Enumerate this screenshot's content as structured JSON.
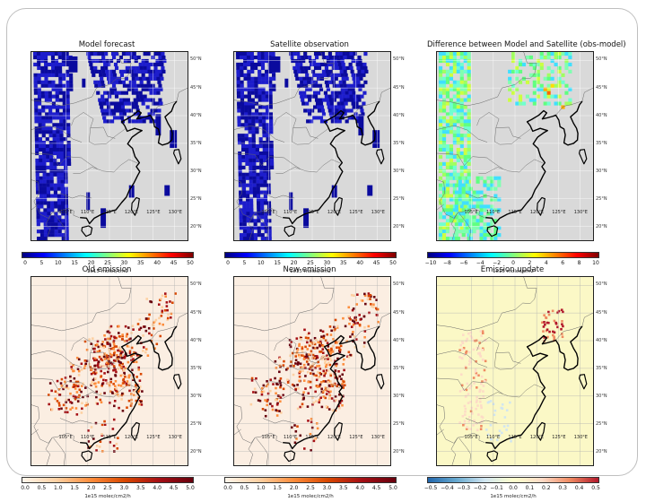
{
  "panels": [
    {
      "id": "model-forecast",
      "title": "Model forecast",
      "scheme": "jet-sparse",
      "lat_labels": [
        "50°N",
        "45°N",
        "40°N",
        "35°N",
        "30°N",
        "25°N",
        "20°N"
      ],
      "lon_labels": [
        "105°E",
        "110°E",
        "115°E",
        "120°E",
        "125°E",
        "130°E"
      ],
      "colorbar": {
        "gradient": "jet",
        "ticks": [
          "0",
          "5",
          "10",
          "15",
          "20",
          "25",
          "30",
          "35",
          "40",
          "45",
          "50"
        ],
        "unit": "1e15 molec/cm2"
      }
    },
    {
      "id": "satellite-observation",
      "title": "Satellite observation",
      "scheme": "jet-sparse",
      "lat_labels": [
        "50°N",
        "45°N",
        "40°N",
        "35°N",
        "30°N",
        "25°N",
        "20°N"
      ],
      "lon_labels": [
        "105°E",
        "110°E",
        "115°E",
        "120°E",
        "125°E",
        "130°E"
      ],
      "colorbar": {
        "gradient": "jet",
        "ticks": [
          "0",
          "5",
          "10",
          "15",
          "20",
          "25",
          "30",
          "35",
          "40",
          "45",
          "50"
        ],
        "unit": "1e15 molec/cm2"
      }
    },
    {
      "id": "difference",
      "title": "Difference between Model and Satellite (obs-model)",
      "scheme": "diff",
      "lat_labels": [
        "50°N",
        "45°N",
        "40°N",
        "35°N",
        "30°N",
        "25°N",
        "20°N"
      ],
      "lon_labels": [
        "105°E",
        "110°E",
        "115°E",
        "120°E",
        "125°E",
        "130°E"
      ],
      "colorbar": {
        "gradient": "jet",
        "ticks": [
          "−10",
          "−8",
          "−6",
          "−4",
          "−2",
          "0",
          "2",
          "4",
          "6",
          "8",
          "10"
        ],
        "unit": "1e15 molec/cm2"
      }
    },
    {
      "id": "old-emission",
      "title": "Old emission",
      "scheme": "emission",
      "lat_labels": [
        "50°N",
        "45°N",
        "40°N",
        "35°N",
        "30°N",
        "25°N",
        "20°N"
      ],
      "lon_labels": [
        "105°E",
        "110°E",
        "115°E",
        "120°E",
        "125°E",
        "130°E"
      ],
      "colorbar": {
        "gradient": "reds",
        "ticks": [
          "0.0",
          "0.5",
          "1.0",
          "1.5",
          "2.0",
          "2.5",
          "3.0",
          "3.5",
          "4.0",
          "4.5",
          "5.0"
        ],
        "unit": "1e15 molec/cm2/h"
      }
    },
    {
      "id": "new-emission",
      "title": "New emission",
      "scheme": "emission",
      "lat_labels": [
        "50°N",
        "45°N",
        "40°N",
        "35°N",
        "30°N",
        "25°N",
        "20°N"
      ],
      "lon_labels": [
        "105°E",
        "110°E",
        "115°E",
        "120°E",
        "125°E",
        "130°E"
      ],
      "colorbar": {
        "gradient": "reds",
        "ticks": [
          "0.0",
          "0.5",
          "1.0",
          "1.5",
          "2.0",
          "2.5",
          "3.0",
          "3.5",
          "4.0",
          "4.5",
          "5.0"
        ],
        "unit": "1e15 molec/cm2/h"
      }
    },
    {
      "id": "emission-update",
      "title": "Emission update",
      "scheme": "update",
      "lat_labels": [
        "50°N",
        "45°N",
        "40°N",
        "35°N",
        "30°N",
        "25°N",
        "20°N"
      ],
      "lon_labels": [
        "105°E",
        "110°E",
        "115°E",
        "120°E",
        "125°E",
        "130°E"
      ],
      "colorbar": {
        "gradient": "rdbu",
        "ticks": [
          "−0.5",
          "−0.4",
          "−0.3",
          "−0.2",
          "−0.1",
          "0.0",
          "0.1",
          "0.2",
          "0.3",
          "0.4",
          "0.5"
        ],
        "unit": "1e15 molec/cm2/h"
      }
    }
  ],
  "colors": {
    "map_background_gray": "#d9d9d9",
    "coastline": "#000000",
    "jet": [
      "#00007f",
      "#0000ff",
      "#0080ff",
      "#00ffff",
      "#80ff80",
      "#ffff00",
      "#ff8000",
      "#ff0000",
      "#7f0000"
    ],
    "reds": [
      "#fff5eb",
      "#fdd0a2",
      "#fd8d3c",
      "#d94801",
      "#a50f15",
      "#67000d"
    ],
    "rdbu": [
      "#2166ac",
      "#67a9cf",
      "#d1e5f0",
      "#fdffcc",
      "#fddbc7",
      "#ef8a62",
      "#b2182b"
    ],
    "update_background": "#fbf8c6",
    "emission_background": "#fbeee2"
  }
}
